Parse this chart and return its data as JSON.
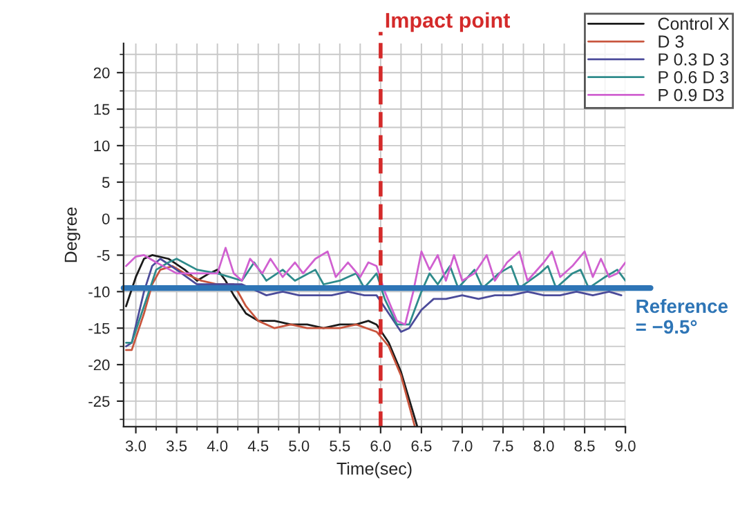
{
  "chart_data": {
    "type": "line",
    "xlabel": "Time(sec)",
    "ylabel": "Degree",
    "xlim": [
      2.85,
      9.0
    ],
    "ylim": [
      -28.5,
      24
    ],
    "xticks": [
      {
        "value": 3.0,
        "label": "3.0"
      },
      {
        "value": 3.5,
        "label": "3.5"
      },
      {
        "value": 4.0,
        "label": "4.0"
      },
      {
        "value": 4.5,
        "label": "4.5"
      },
      {
        "value": 5.0,
        "label": "5.0"
      },
      {
        "value": 5.5,
        "label": "5.5"
      },
      {
        "value": 6.0,
        "label": "6.0"
      },
      {
        "value": 6.5,
        "label": "6.5"
      },
      {
        "value": 7.0,
        "label": "7.0"
      },
      {
        "value": 7.5,
        "label": "7.5"
      },
      {
        "value": 8.0,
        "label": "8.0"
      },
      {
        "value": 8.5,
        "label": "8.5"
      },
      {
        "value": 9.0,
        "label": "9.0"
      }
    ],
    "yticks": [
      -25,
      -20,
      -15,
      -10,
      -5,
      0,
      5,
      10,
      15,
      20
    ],
    "grid": true,
    "legend": "top right",
    "line_style": "solid",
    "marker": "none",
    "ref_lines": [
      {
        "axis": "x",
        "value": 6.0,
        "label": "Impact point",
        "color": "#d42a2a",
        "line_style": "dashed"
      },
      {
        "axis": "y",
        "value": -9.5,
        "label": "Reference\n= −9.5°",
        "color": "#2e75b6",
        "line_style": "solid"
      }
    ],
    "series": [
      {
        "name": "Control X",
        "color": "#1a1a1a",
        "x": [
          2.88,
          3.0,
          3.1,
          3.2,
          3.4,
          3.6,
          3.75,
          3.9,
          4.0,
          4.1,
          4.2,
          4.35,
          4.5,
          4.7,
          4.9,
          5.1,
          5.3,
          5.5,
          5.7,
          5.85,
          5.95,
          6.1,
          6.25,
          6.45
        ],
        "values": [
          -12,
          -8,
          -5.5,
          -5,
          -5.5,
          -7,
          -8.5,
          -7.5,
          -7,
          -8.5,
          -10.5,
          -13,
          -14,
          -14,
          -14.5,
          -14.5,
          -15,
          -14.5,
          -14.5,
          -14,
          -14.5,
          -17,
          -21,
          -28.5
        ]
      },
      {
        "name": "D 3",
        "color": "#c8553d",
        "x": [
          2.88,
          2.95,
          3.1,
          3.2,
          3.3,
          3.45,
          3.6,
          3.8,
          4.0,
          4.2,
          4.35,
          4.5,
          4.7,
          4.9,
          5.1,
          5.3,
          5.5,
          5.7,
          5.95,
          6.1,
          6.25,
          6.42
        ],
        "values": [
          -18,
          -18,
          -13,
          -9,
          -7,
          -6.5,
          -7.5,
          -8.5,
          -9,
          -9,
          -12,
          -14,
          -15,
          -14.5,
          -15,
          -15,
          -15,
          -14.5,
          -15.5,
          -17.5,
          -21.5,
          -28.5
        ]
      },
      {
        "name": "P 0.3 D 3",
        "color": "#4b4b9a",
        "x": [
          2.88,
          2.95,
          3.1,
          3.2,
          3.3,
          3.5,
          3.75,
          4.0,
          4.3,
          4.5,
          4.6,
          4.8,
          5.0,
          5.2,
          5.4,
          5.6,
          5.8,
          5.95,
          6.1,
          6.25,
          6.35,
          6.5,
          6.65,
          6.8,
          7.0,
          7.2,
          7.4,
          7.6,
          7.8,
          8.0,
          8.2,
          8.4,
          8.6,
          8.8,
          8.95
        ],
        "values": [
          -17.5,
          -17,
          -10,
          -6.5,
          -5.5,
          -7,
          -9,
          -9,
          -9,
          -10,
          -10.5,
          -10,
          -10.5,
          -10.5,
          -10.5,
          -10,
          -10.5,
          -10.5,
          -13,
          -15.5,
          -15,
          -12.5,
          -11,
          -11,
          -10.5,
          -11,
          -10.5,
          -10.5,
          -10,
          -10.5,
          -10.5,
          -10,
          -10.5,
          -10,
          -10.5
        ]
      },
      {
        "name": "P 0.6 D 3",
        "color": "#2e8b8b",
        "x": [
          2.88,
          2.95,
          3.1,
          3.25,
          3.4,
          3.5,
          3.75,
          4.0,
          4.15,
          4.3,
          4.45,
          4.6,
          4.8,
          4.95,
          5.2,
          5.3,
          5.5,
          5.7,
          5.8,
          5.95,
          6.05,
          6.2,
          6.35,
          6.5,
          6.6,
          6.7,
          6.85,
          6.95,
          7.15,
          7.25,
          7.45,
          7.6,
          7.7,
          7.95,
          8.05,
          8.15,
          8.35,
          8.45,
          8.55,
          8.75,
          8.9,
          9.0
        ],
        "values": [
          -17,
          -17,
          -12,
          -7,
          -6,
          -5.5,
          -7,
          -7.5,
          -8,
          -8.5,
          -6,
          -8.5,
          -7,
          -8.5,
          -7,
          -9,
          -8.5,
          -7.5,
          -9.5,
          -7.5,
          -11,
          -14.5,
          -14.5,
          -10,
          -7.5,
          -9,
          -6.5,
          -9.5,
          -7,
          -9.5,
          -7.5,
          -6.5,
          -9.5,
          -7.5,
          -6.5,
          -9.5,
          -7.5,
          -7,
          -9.5,
          -8,
          -7,
          -8.5
        ]
      },
      {
        "name": "P 0.9 D3",
        "color": "#d060d0",
        "x": [
          2.88,
          3.0,
          3.1,
          3.25,
          3.5,
          3.75,
          4.0,
          4.1,
          4.2,
          4.3,
          4.4,
          4.55,
          4.65,
          4.8,
          4.95,
          5.05,
          5.2,
          5.35,
          5.45,
          5.6,
          5.75,
          5.85,
          5.95,
          6.05,
          6.2,
          6.3,
          6.4,
          6.5,
          6.6,
          6.7,
          6.8,
          6.9,
          7.0,
          7.15,
          7.3,
          7.4,
          7.55,
          7.7,
          7.8,
          8.0,
          8.1,
          8.2,
          8.35,
          8.5,
          8.6,
          8.7,
          8.8,
          8.9,
          9.0
        ],
        "values": [
          -6.5,
          -5.2,
          -5,
          -6,
          -7.5,
          -7.5,
          -7.5,
          -4,
          -7.5,
          -8.5,
          -5.5,
          -7.5,
          -5.5,
          -8,
          -6,
          -7.5,
          -5.5,
          -4.5,
          -8,
          -6,
          -8,
          -6,
          -6.5,
          -10,
          -14,
          -14.5,
          -10,
          -4.5,
          -7,
          -5,
          -8.5,
          -5,
          -8.5,
          -7.5,
          -5,
          -8.5,
          -6,
          -4.5,
          -8.5,
          -6,
          -4.5,
          -8,
          -6.5,
          -4.5,
          -8,
          -5.5,
          -8,
          -7.5,
          -6
        ]
      }
    ]
  }
}
